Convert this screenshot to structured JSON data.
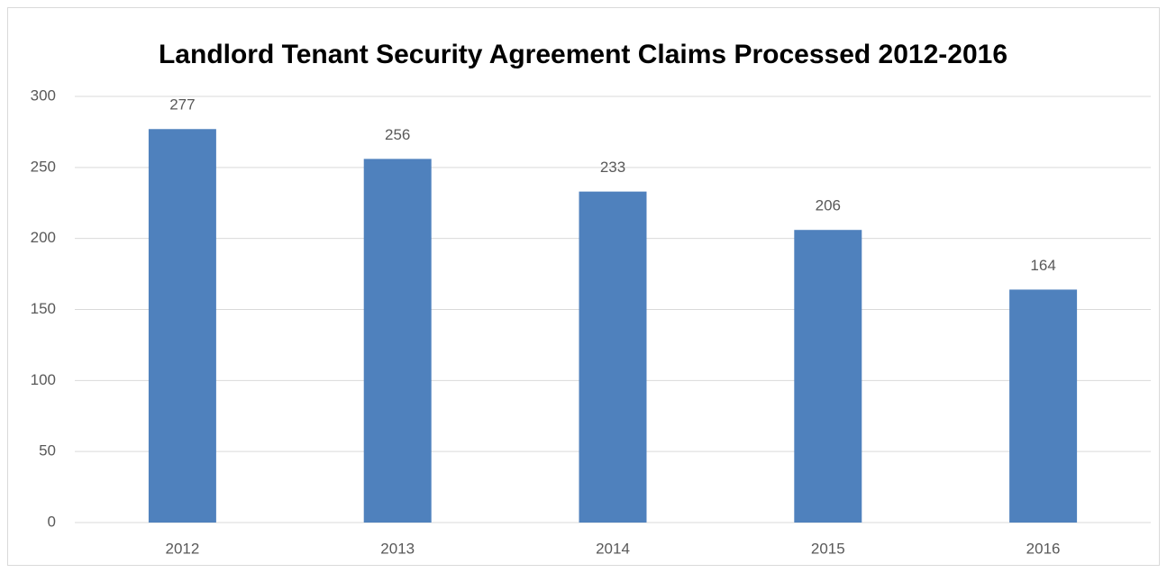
{
  "chart_data": {
    "type": "bar",
    "title": "Landlord Tenant Security Agreement Claims Processed 2012-2016",
    "categories": [
      "2012",
      "2013",
      "2014",
      "2015",
      "2016"
    ],
    "values": [
      277,
      256,
      233,
      206,
      164
    ],
    "color": "#4f81bd",
    "ylim": [
      0,
      300
    ],
    "yticks": [
      0,
      50,
      100,
      150,
      200,
      250,
      300
    ],
    "grid": true
  }
}
